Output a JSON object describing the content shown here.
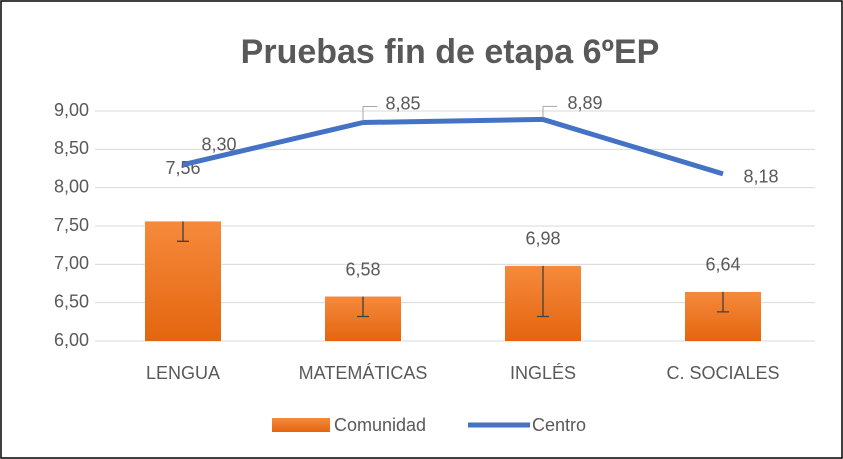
{
  "chart_data": {
    "type": "bar-line",
    "title": "Pruebas fin de etapa 6ºEP",
    "categories": [
      "LENGUA",
      "MATEMÁTICAS",
      "INGLÉS",
      "C. SOCIALES"
    ],
    "series": [
      {
        "name": "Comunidad",
        "type": "bar",
        "color": "#ed7d31",
        "values": [
          7.56,
          6.58,
          6.98,
          6.64
        ],
        "value_labels": [
          "7,56",
          "6,58",
          "6,98",
          "6,64"
        ],
        "errors": [
          0.26,
          0.26,
          0.66,
          0.26
        ]
      },
      {
        "name": "Centro",
        "type": "line",
        "color": "#4472c4",
        "values": [
          8.3,
          8.85,
          8.89,
          8.18
        ],
        "value_labels": [
          "8,30",
          "8,85",
          "8,89",
          "8,18"
        ]
      }
    ],
    "ylim": [
      6,
      9
    ],
    "yticks": [
      {
        "value": 6,
        "label": "6,00"
      },
      {
        "value": 6.5,
        "label": "6,50"
      },
      {
        "value": 7,
        "label": "7,00"
      },
      {
        "value": 7.5,
        "label": "7,50"
      },
      {
        "value": 8,
        "label": "8,00"
      },
      {
        "value": 8.5,
        "label": "8,50"
      },
      {
        "value": 9,
        "label": "9,00"
      }
    ],
    "grid": true,
    "legend": "bottom"
  }
}
